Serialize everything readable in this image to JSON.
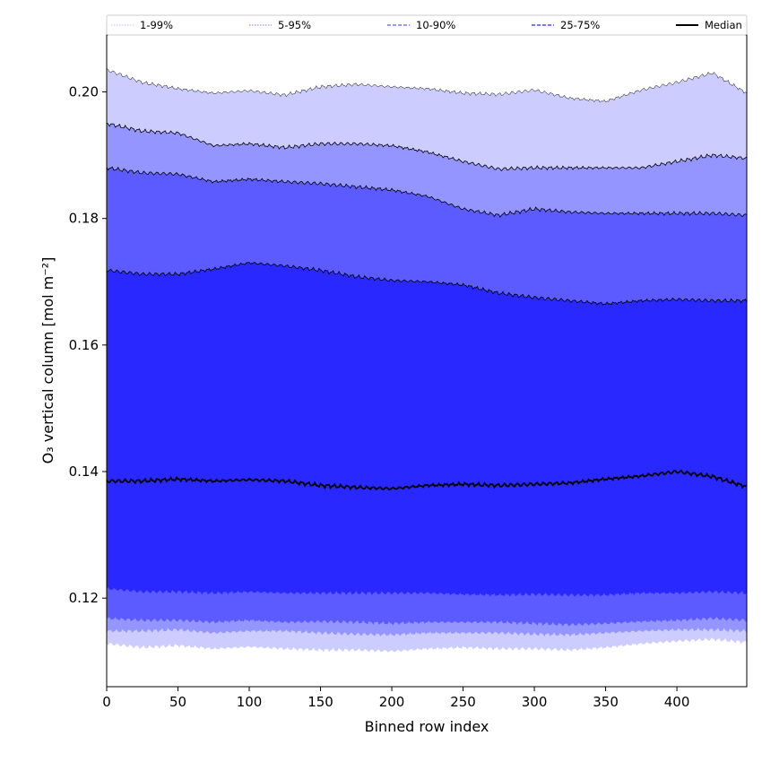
{
  "chart_data": {
    "type": "area",
    "title": "",
    "xlabel": "Binned row index",
    "ylabel": "O₃ vertical column [mol m⁻²]",
    "xlim": [
      0,
      449
    ],
    "ylim": [
      0.106,
      0.209
    ],
    "x_ticks": [
      "0",
      "50",
      "100",
      "150",
      "200",
      "250",
      "300",
      "350",
      "400"
    ],
    "y_ticks": [
      "0.12",
      "0.14",
      "0.16",
      "0.18",
      "0.20"
    ],
    "grid": false,
    "legend_position": "top",
    "legend": [
      {
        "name": "1-99%",
        "style": "dotted",
        "color": "#ccccff"
      },
      {
        "name": "5-95%",
        "style": "dotted",
        "color": "#9595ff"
      },
      {
        "name": "10-90%",
        "style": "dashed",
        "color": "#5b5bff"
      },
      {
        "name": "25-75%",
        "style": "dashed",
        "color": "#2828ff"
      },
      {
        "name": "Median",
        "style": "solid",
        "color": "#000000"
      }
    ],
    "x_knots": [
      0,
      25,
      50,
      75,
      100,
      125,
      150,
      175,
      200,
      225,
      250,
      275,
      300,
      325,
      350,
      375,
      400,
      425,
      449
    ],
    "bands": [
      {
        "name": "1-99%",
        "color": "#ccccff",
        "upper": [
          0.2035,
          0.2015,
          0.2005,
          0.1998,
          0.2002,
          0.1995,
          0.2008,
          0.2012,
          0.2008,
          0.2005,
          0.1998,
          0.1996,
          0.2003,
          0.199,
          0.1985,
          0.2003,
          0.2015,
          0.203,
          0.1998
        ],
        "lower": [
          0.1128,
          0.1122,
          0.1125,
          0.112,
          0.1123,
          0.112,
          0.1118,
          0.1118,
          0.1116,
          0.112,
          0.1122,
          0.112,
          0.112,
          0.1118,
          0.1122,
          0.1128,
          0.1132,
          0.1135,
          0.113
        ]
      },
      {
        "name": "5-95%",
        "color": "#9595ff",
        "upper": [
          0.195,
          0.1938,
          0.1935,
          0.1915,
          0.1918,
          0.1912,
          0.1918,
          0.1918,
          0.1915,
          0.1905,
          0.189,
          0.1878,
          0.188,
          0.188,
          0.188,
          0.188,
          0.189,
          0.19,
          0.1895
        ],
        "lower": [
          0.1148,
          0.1148,
          0.115,
          0.1145,
          0.1148,
          0.1148,
          0.1145,
          0.1143,
          0.1142,
          0.1145,
          0.1145,
          0.1145,
          0.1143,
          0.1142,
          0.1145,
          0.1148,
          0.115,
          0.115,
          0.1148
        ]
      },
      {
        "name": "10-90%",
        "color": "#5b5bff",
        "upper": [
          0.188,
          0.1872,
          0.187,
          0.1858,
          0.1862,
          0.1858,
          0.1855,
          0.185,
          0.1845,
          0.1835,
          0.1815,
          0.1805,
          0.1815,
          0.181,
          0.1808,
          0.1808,
          0.1808,
          0.1808,
          0.1805
        ],
        "lower": [
          0.1168,
          0.1165,
          0.1165,
          0.1162,
          0.1165,
          0.1162,
          0.1163,
          0.1162,
          0.116,
          0.1162,
          0.1162,
          0.1162,
          0.116,
          0.1158,
          0.116,
          0.1163,
          0.1165,
          0.1168,
          0.1165
        ]
      },
      {
        "name": "25-75%",
        "color": "#2828ff",
        "upper": [
          0.1718,
          0.1712,
          0.1712,
          0.172,
          0.173,
          0.1725,
          0.1718,
          0.1708,
          0.1702,
          0.17,
          0.1695,
          0.1682,
          0.1675,
          0.167,
          0.1665,
          0.167,
          0.1672,
          0.167,
          0.167
        ],
        "lower": [
          0.1215,
          0.121,
          0.121,
          0.1208,
          0.121,
          0.1208,
          0.1208,
          0.1208,
          0.1208,
          0.1208,
          0.1206,
          0.1205,
          0.1206,
          0.1205,
          0.1205,
          0.1208,
          0.1208,
          0.121,
          0.1208
        ]
      }
    ],
    "median": {
      "name": "Median",
      "color": "#000000",
      "values": [
        0.1385,
        0.1385,
        0.1388,
        0.1385,
        0.1387,
        0.1385,
        0.1378,
        0.1375,
        0.1373,
        0.1378,
        0.138,
        0.1378,
        0.138,
        0.1382,
        0.1388,
        0.1393,
        0.14,
        0.1392,
        0.1376
      ]
    }
  }
}
